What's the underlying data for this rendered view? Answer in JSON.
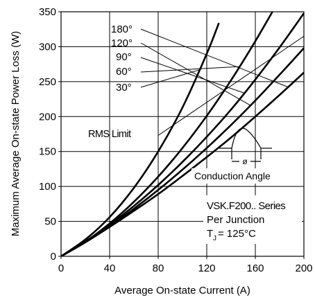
{
  "chart_data": {
    "type": "line",
    "xlabel": "Average On-state Current (A)",
    "ylabel": "Maximum Average On-state Power Loss (W)",
    "xlim": [
      0,
      200
    ],
    "ylim": [
      0,
      350
    ],
    "x_ticks": [
      0,
      40,
      80,
      120,
      160,
      200
    ],
    "y_ticks": [
      0,
      50,
      100,
      150,
      200,
      250,
      300,
      350
    ],
    "grid": true,
    "series": [
      {
        "name": "180°",
        "x": [
          0,
          20,
          40,
          60,
          80,
          100,
          120,
          140,
          160,
          180,
          200
        ],
        "y": [
          0,
          20,
          42,
          65,
          89,
          115,
          142,
          170,
          200,
          231,
          263
        ]
      },
      {
        "name": "120°",
        "x": [
          0,
          20,
          40,
          60,
          80,
          100,
          120,
          140,
          160,
          180,
          200
        ],
        "y": [
          0,
          20,
          43,
          68,
          95,
          124,
          155,
          188,
          223,
          260,
          298
        ]
      },
      {
        "name": "90°",
        "x": [
          0,
          20,
          40,
          60,
          80,
          100,
          120,
          140,
          160,
          180,
          200
        ],
        "y": [
          0,
          21,
          45,
          72,
          102,
          135,
          171,
          210,
          253,
          299,
          348
        ]
      },
      {
        "name": "60°",
        "x": [
          0,
          20,
          40,
          60,
          80,
          100,
          120,
          140,
          160,
          180
        ],
        "y": [
          0,
          21,
          47,
          78,
          114,
          155,
          201,
          252,
          308,
          368
        ]
      },
      {
        "name": "30°",
        "x": [
          0,
          20,
          40,
          60,
          80,
          100,
          120,
          130
        ],
        "y": [
          0,
          24,
          56,
          98,
          150,
          213,
          290,
          334
        ]
      }
    ],
    "rms_limit": {
      "label": "RMS Limit",
      "x": [
        80,
        200
      ],
      "y": [
        173,
        315
      ]
    },
    "annotations": {
      "series_note": "VSK.F200.. Series",
      "junction_note": "Per Junction",
      "temp_main": "T",
      "temp_sub": "J",
      "temp_value": "= 125°C",
      "conduction_label": "Conduction Angle",
      "phi": "ø"
    }
  }
}
